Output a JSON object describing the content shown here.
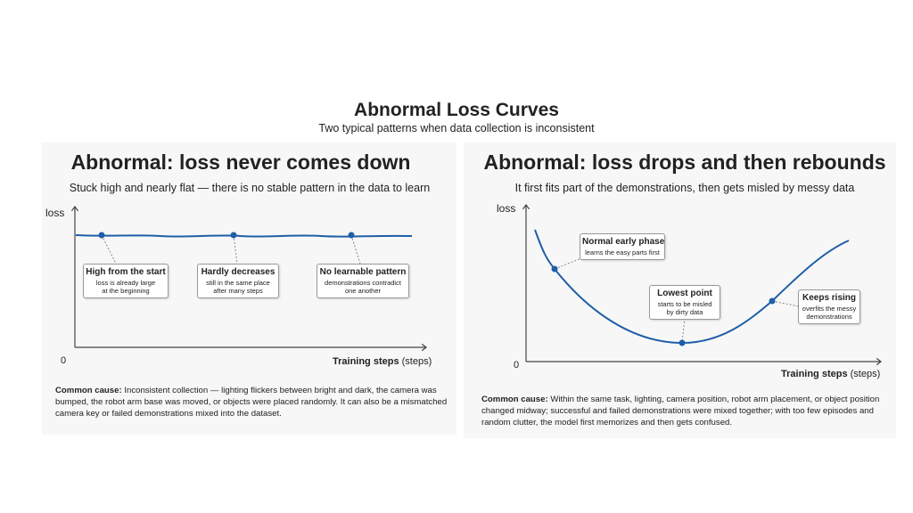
{
  "header": {
    "title": "Abnormal Loss Curves",
    "subtitle": "Two typical patterns when data collection is inconsistent"
  },
  "panels": [
    {
      "title": "Abnormal: loss never comes down",
      "subtitle": "Stuck high and nearly flat — there is no stable pattern in the data to learn",
      "y_label": "loss",
      "origin": "0",
      "x_label": "Training steps",
      "x_unit": "(steps)",
      "callouts": [
        {
          "title": "High from the start",
          "lines": [
            "loss is already large",
            "at the beginning"
          ]
        },
        {
          "title": "Hardly decreases",
          "lines": [
            "still in the same place",
            "after many steps"
          ]
        },
        {
          "title": "No learnable pattern",
          "lines": [
            "demonstrations contradict",
            "one another"
          ]
        }
      ],
      "cause_label": "Common cause:",
      "cause_text": "Inconsistent collection — lighting flickers between bright and dark, the camera was bumped, the robot arm base was moved, or objects were placed randomly. It can also be a mismatched camera key or failed demonstrations mixed into the dataset."
    },
    {
      "title": "Abnormal: loss drops and then rebounds",
      "subtitle": "It first fits part of the demonstrations, then gets misled by messy data",
      "y_label": "loss",
      "origin": "0",
      "x_label": "Training steps",
      "x_unit": "(steps)",
      "callouts": [
        {
          "title": "Normal early phase",
          "lines": [
            "learns the easy parts first"
          ]
        },
        {
          "title": "Lowest point",
          "lines": [
            "starts to be misled",
            "by dirty data"
          ]
        },
        {
          "title": "Keeps rising",
          "lines": [
            "overfits the messy",
            "demonstrations"
          ]
        }
      ],
      "cause_label": "Common cause:",
      "cause_text": "Within the same task, lighting, camera position, robot arm placement, or object position changed midway; successful and failed demonstrations were mixed together; with too few episodes and random clutter, the model first memorizes and then gets confused."
    }
  ]
}
